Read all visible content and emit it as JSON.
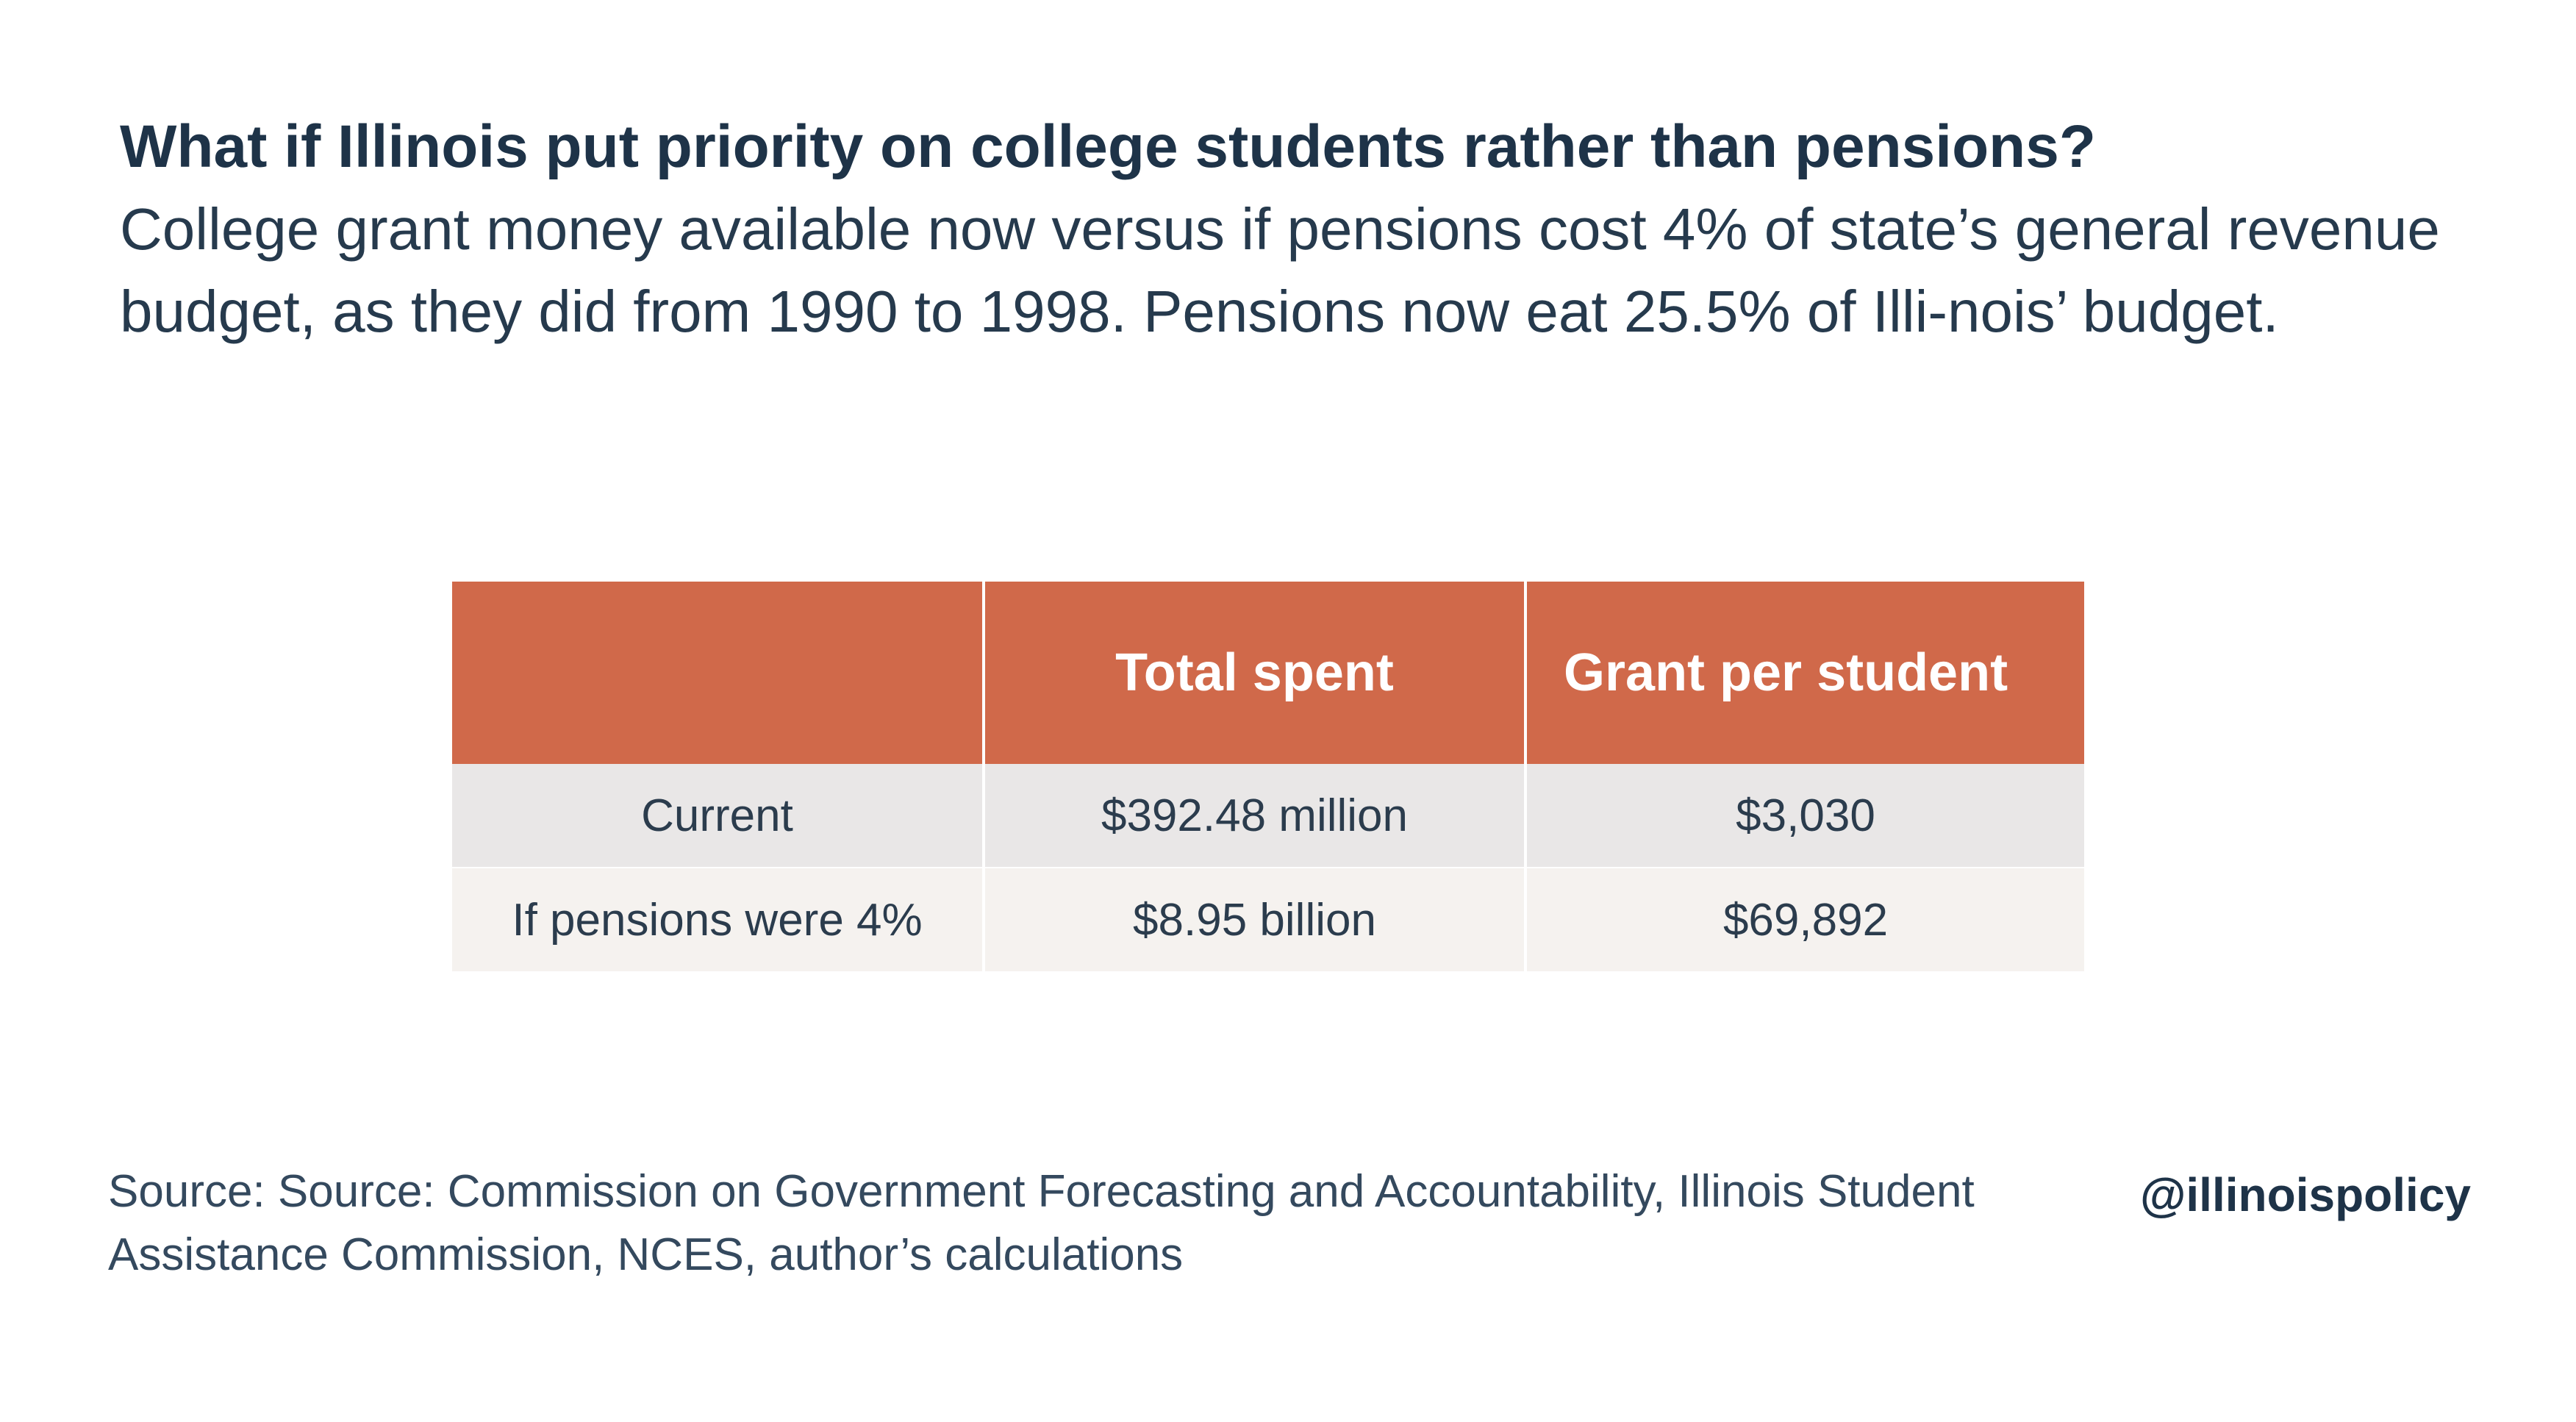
{
  "title": "What if Illinois put priority on college students rather than pensions?",
  "subtitle": "College grant money available now versus if pensions cost 4% of state’s general revenue budget, as they did from 1990 to 1998. Pensions now eat 25.5% of Illi-nois’ budget.",
  "colors": {
    "header_bg": "#d0694a",
    "row1_bg": "#e9e7e7",
    "row2_bg": "#f5f2ef",
    "text_dark": "#1e3348"
  },
  "chart_data": {
    "type": "table",
    "columns": [
      "",
      "Total spent",
      "Grant per student"
    ],
    "rows": [
      [
        "Current",
        "$392.48 million",
        "$3,030"
      ],
      [
        "If pensions were 4%",
        "$8.95 billion",
        "$69,892"
      ]
    ]
  },
  "footer": {
    "source": "Source: Source: Commission on Government Forecasting and Accountability, Illinois Student Assistance Commission, NCES, author’s calculations",
    "handle": "@illinoispolicy"
  }
}
